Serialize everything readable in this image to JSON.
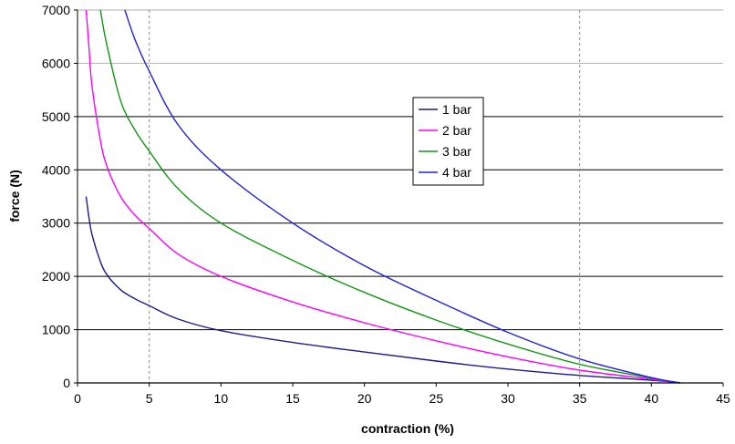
{
  "chart_data": {
    "type": "line",
    "title": "",
    "xlabel": "contraction (%)",
    "ylabel": "force (N)",
    "xlim": [
      0,
      45
    ],
    "ylim": [
      0,
      7000
    ],
    "x_ticks": [
      0,
      5,
      10,
      15,
      20,
      25,
      30,
      35,
      40,
      45
    ],
    "y_ticks": [
      0,
      1000,
      2000,
      3000,
      4000,
      5000,
      6000,
      7000
    ],
    "y_gridlines": "solid dark at 1000-step intervals, light at 6000 and 7000",
    "x_gridlines": [
      5,
      35
    ],
    "legend_position": "center",
    "series": [
      {
        "name": "1 bar",
        "color": "#1a1a8c",
        "points": [
          [
            0.6,
            3500
          ],
          [
            0.8,
            3100
          ],
          [
            1.0,
            2800
          ],
          [
            1.5,
            2350
          ],
          [
            2.0,
            2050
          ],
          [
            3,
            1750
          ],
          [
            4,
            1580
          ],
          [
            5,
            1450
          ],
          [
            7,
            1200
          ],
          [
            10,
            980
          ],
          [
            15,
            760
          ],
          [
            20,
            580
          ],
          [
            25,
            410
          ],
          [
            30,
            260
          ],
          [
            35,
            140
          ],
          [
            40,
            50
          ],
          [
            42,
            0
          ]
        ]
      },
      {
        "name": "2 bar",
        "color": "#ff00ff",
        "points": [
          [
            0.6,
            7000
          ],
          [
            0.8,
            6300
          ],
          [
            1.0,
            5600
          ],
          [
            1.5,
            4700
          ],
          [
            2.0,
            4100
          ],
          [
            3,
            3500
          ],
          [
            4,
            3150
          ],
          [
            5,
            2900
          ],
          [
            7,
            2420
          ],
          [
            10,
            2000
          ],
          [
            15,
            1520
          ],
          [
            20,
            1130
          ],
          [
            25,
            790
          ],
          [
            30,
            490
          ],
          [
            35,
            240
          ],
          [
            40,
            70
          ],
          [
            42,
            0
          ]
        ]
      },
      {
        "name": "3 bar",
        "color": "#149614",
        "points": [
          [
            1.6,
            7000
          ],
          [
            2.0,
            6400
          ],
          [
            3,
            5300
          ],
          [
            4,
            4750
          ],
          [
            5,
            4350
          ],
          [
            7,
            3650
          ],
          [
            10,
            3000
          ],
          [
            15,
            2300
          ],
          [
            20,
            1700
          ],
          [
            25,
            1180
          ],
          [
            30,
            730
          ],
          [
            35,
            350
          ],
          [
            40,
            90
          ],
          [
            42,
            0
          ]
        ]
      },
      {
        "name": "4 bar",
        "color": "#2020e0",
        "points": [
          [
            3.3,
            7000
          ],
          [
            4,
            6450
          ],
          [
            5,
            5850
          ],
          [
            7,
            4850
          ],
          [
            10,
            4000
          ],
          [
            15,
            3000
          ],
          [
            20,
            2200
          ],
          [
            25,
            1550
          ],
          [
            30,
            950
          ],
          [
            35,
            450
          ],
          [
            40,
            100
          ],
          [
            42,
            0
          ]
        ]
      }
    ]
  }
}
